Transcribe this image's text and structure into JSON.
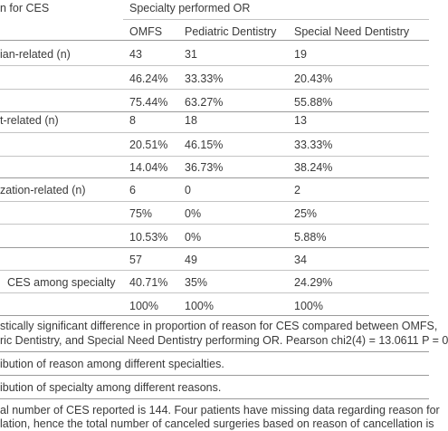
{
  "header": {
    "reason_col": "n for CES",
    "specialty_group": "Specialty performed OR",
    "columns": [
      "OMFS",
      "Pediatric Dentistry",
      "Special Need Dentistry"
    ]
  },
  "groups": [
    {
      "label": "ian-related (n)",
      "rows": [
        {
          "label": "",
          "values": [
            "43",
            "31",
            "19"
          ]
        },
        {
          "label": "",
          "values": [
            "46.24%",
            "33.33%",
            "20.43%"
          ]
        },
        {
          "label": "",
          "values": [
            "75.44%",
            "63.27%",
            "55.88%"
          ]
        }
      ]
    },
    {
      "label": "t-related (n)",
      "rows": [
        {
          "label": "",
          "values": [
            "8",
            "18",
            "13"
          ]
        },
        {
          "label": "",
          "values": [
            "20.51%",
            "46.15%",
            "33.33%"
          ]
        },
        {
          "label": "",
          "values": [
            "14.04%",
            "36.73%",
            "38.24%"
          ]
        }
      ]
    },
    {
      "label": "zation-related (n)",
      "rows": [
        {
          "label": "",
          "values": [
            "6",
            "0",
            "2"
          ]
        },
        {
          "label": "",
          "values": [
            "75%",
            "0%",
            "25%"
          ]
        },
        {
          "label": "",
          "values": [
            "10.53%",
            "0%",
            "5.88%"
          ]
        }
      ]
    },
    {
      "label": "",
      "rows": [
        {
          "label": "",
          "values": [
            "57",
            "49",
            "34"
          ]
        },
        {
          "label": "CES among specialty",
          "values": [
            "40.71%",
            "35%",
            "24.29%"
          ]
        },
        {
          "label": "",
          "values": [
            "100%",
            "100%",
            "100%"
          ]
        }
      ]
    }
  ],
  "footnotes": {
    "chi_line1": "stically significant difference in proportion of reason for CES compared between OMFS,",
    "chi_line2": "ric Dentistry, and Special Need Dentistry performing OR. Pearson chi2(4) = 13.0611 P = 0",
    "dist1": "ibution of reason among different specialties.",
    "dist2": "ibution of specialty among different reasons.",
    "total_line1": "al number of CES reported is 144. Four patients have missing data regarding reason for",
    "total_line2": "lation, hence the total number of canceled surgeries based on reason of cancellation is"
  }
}
